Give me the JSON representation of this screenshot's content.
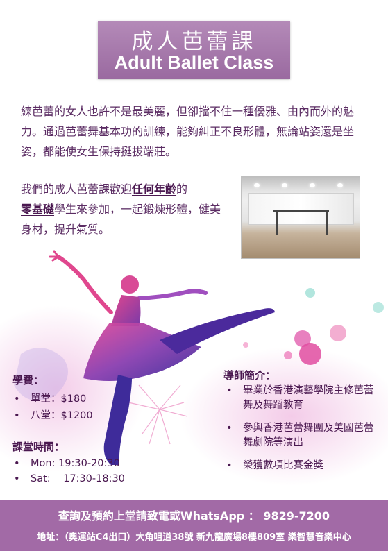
{
  "title": {
    "zh": "成人芭蕾課",
    "en": "Adult Ballet Class"
  },
  "intro": "練芭蕾的女人也許不是最美麗，但卻擋不住一種優雅、由內而外的魅力。通過芭蕾舞基本功的訓練，能夠糾正不良形體，無論站姿還是坐姿，都能使女生保持挺拔端莊。",
  "welcome": {
    "part1": "我們的成人芭蕾課歡迎",
    "emph1": "任何年齡",
    "part2": "的",
    "emph2": "零基礎",
    "part3": "學生來參加，一起鍛煉形體，健美身材，提升氣質。"
  },
  "fees": {
    "title": "學費：",
    "items": [
      "單堂：$180",
      "八堂：$1200"
    ]
  },
  "schedule": {
    "title": "課堂時間：",
    "items": [
      "Mon: 19:30-20:30",
      "Sat:    17:30-18:30"
    ]
  },
  "tutor": {
    "title": "導師簡介：",
    "items": [
      "畢業於香港演藝學院主修芭蕾舞及舞蹈教育",
      "參與香港芭蕾舞團及美國芭蕾舞劇院等演出",
      "榮獲數項比賽金獎"
    ]
  },
  "footer": {
    "contact": "查詢及預約上堂請致電或WhatsApp ： 9829-7200",
    "address": "地址：（奧運站C4出口）大角咀道38號 新九龍廣場8樓809室 樂智慧音樂中心"
  },
  "colors": {
    "accent": "#a26aa6",
    "text": "#5b2c63",
    "title_box": "#a878ad"
  }
}
